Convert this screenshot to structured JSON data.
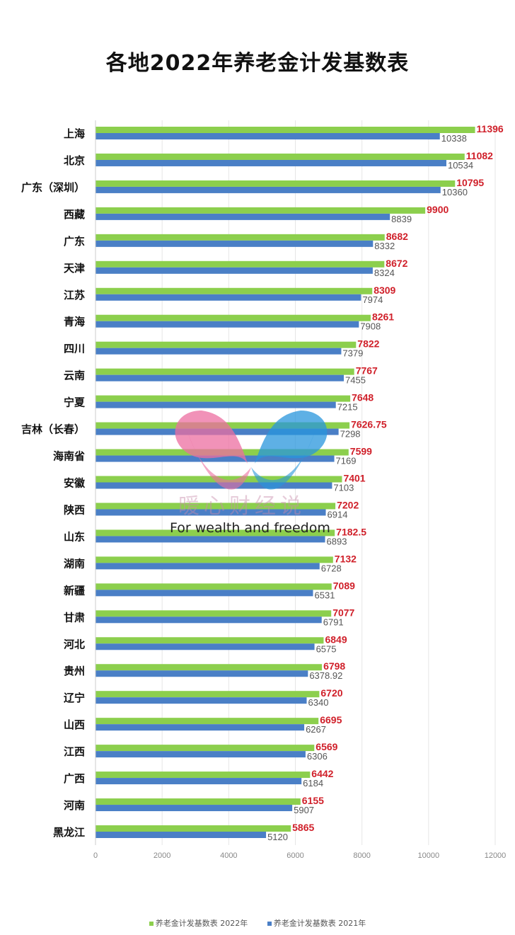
{
  "chart_data": {
    "type": "bar",
    "orientation": "horizontal",
    "title": "各地2022年养老金计发基数表",
    "categories": [
      "上海",
      "北京",
      "广东（深圳）",
      "西藏",
      "广东",
      "天津",
      "江苏",
      "青海",
      "四川",
      "云南",
      "宁夏",
      "吉林（长春）",
      "海南省",
      "安徽",
      "陕西",
      "山东",
      "湖南",
      "新疆",
      "甘肃",
      "河北",
      "贵州",
      "辽宁",
      "山西",
      "江西",
      "广西",
      "河南",
      "黑龙江"
    ],
    "series": [
      {
        "name": "养老金计发基数表 2022年",
        "color": "#8ccf4d",
        "label_color": "#d0202a",
        "values": [
          11396,
          11082,
          10795,
          9900,
          8682,
          8672,
          8309,
          8261,
          7822,
          7767,
          7648,
          7626.75,
          7599,
          7401,
          7202,
          7182.5,
          7132,
          7089,
          7077,
          6849,
          6798,
          6720,
          6695,
          6569,
          6442,
          6155,
          5865
        ]
      },
      {
        "name": "养老金计发基数表 2021年",
        "color": "#4a7fc6",
        "label_color": "#555555",
        "values": [
          10338,
          10534,
          10360,
          8839,
          8332,
          8324,
          7974,
          7908,
          7379,
          7455,
          7215,
          7298,
          7169,
          7103,
          6914,
          6893,
          6728,
          6531,
          6791,
          6575,
          6378.92,
          6340,
          6267,
          6306,
          6184,
          5907,
          5120
        ]
      }
    ],
    "xlim": [
      0,
      12000
    ],
    "xticks": [
      0,
      2000,
      4000,
      6000,
      8000,
      10000,
      12000
    ],
    "grid": true,
    "legend": "bottom"
  },
  "watermark": {
    "cn": "暖心财经说",
    "en": "For wealth and freedom"
  }
}
